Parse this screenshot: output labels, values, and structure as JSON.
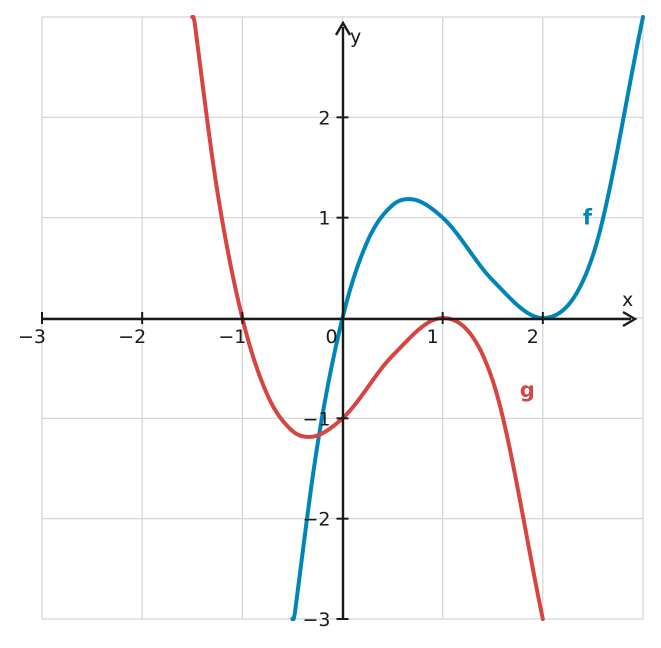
{
  "chart_data": {
    "type": "line",
    "xlim": [
      -3,
      3
    ],
    "ylim": [
      -3,
      3
    ],
    "grid": true,
    "xlabel": "x",
    "ylabel": "y",
    "x_ticks": [
      -3,
      -2,
      -1,
      0,
      1,
      2
    ],
    "x_tick_labels": [
      "−3",
      "−2",
      "−1",
      "0",
      "1",
      "2"
    ],
    "y_ticks": [
      -3,
      -2,
      -1,
      1,
      2
    ],
    "y_tick_labels": [
      "−3",
      "−2",
      "−1",
      "1",
      "2"
    ],
    "series": [
      {
        "name": "f",
        "color": "#0085b8",
        "label_at": [
          2.4,
          1.0
        ],
        "x": [
          -0.5,
          -0.25,
          0,
          0.25,
          0.5,
          0.667,
          1,
          1.5,
          2,
          2.5,
          3
        ],
        "y": [
          -3.125,
          -1.266,
          0,
          0.766,
          1.125,
          1.185,
          1,
          0.375,
          0,
          0.625,
          3
        ]
      },
      {
        "name": "g",
        "color": "#d64541",
        "label_at": [
          1.77,
          -0.72
        ],
        "x": [
          -1.5,
          -1.25,
          -1,
          -0.75,
          -0.5,
          -0.333,
          0,
          0.5,
          1,
          1.5,
          2
        ],
        "y": [
          3.125,
          1.266,
          0,
          -0.766,
          -1.125,
          -1.185,
          -1,
          -0.375,
          0,
          -0.625,
          -3
        ]
      }
    ]
  }
}
